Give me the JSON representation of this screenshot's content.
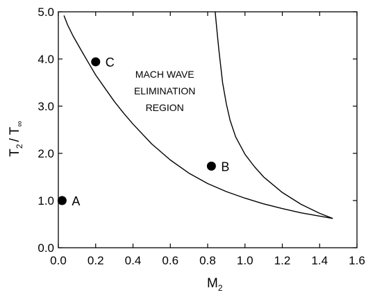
{
  "chart_data": {
    "type": "scatter",
    "title": "",
    "xlabel": {
      "main": "M",
      "sub": "2"
    },
    "ylabel": {
      "main": "T",
      "sub": "2",
      "rest": "/ T",
      "sub2": "∞"
    },
    "xlim": [
      0.0,
      1.6
    ],
    "ylim": [
      0.0,
      5.0
    ],
    "x_ticks": [
      0.0,
      0.2,
      0.4,
      0.6,
      0.8,
      1.0,
      1.2,
      1.4,
      1.6
    ],
    "x_tick_labels": [
      "0.0",
      "0.2",
      "0.4",
      "0.6",
      "0.8",
      "1.0",
      "1.2",
      "1.4",
      "1.6"
    ],
    "y_ticks": [
      0.0,
      1.0,
      2.0,
      3.0,
      4.0,
      5.0
    ],
    "y_tick_labels": [
      "0.0",
      "1.0",
      "2.0",
      "3.0",
      "4.0",
      "5.0"
    ],
    "grid": false,
    "curves": [
      {
        "name": "lower-boundary",
        "x": [
          0.03,
          0.05,
          0.08,
          0.12,
          0.16,
          0.2,
          0.25,
          0.3,
          0.35,
          0.4,
          0.5,
          0.6,
          0.7,
          0.8,
          0.9,
          1.0,
          1.1,
          1.2,
          1.3,
          1.4,
          1.47
        ],
        "y": [
          4.92,
          4.72,
          4.48,
          4.2,
          3.93,
          3.66,
          3.38,
          3.1,
          2.85,
          2.62,
          2.2,
          1.86,
          1.58,
          1.36,
          1.19,
          1.05,
          0.93,
          0.83,
          0.74,
          0.67,
          0.62
        ]
      },
      {
        "name": "upper-boundary",
        "x": [
          0.84,
          0.85,
          0.86,
          0.87,
          0.88,
          0.9,
          0.92,
          0.95,
          1.0,
          1.05,
          1.1,
          1.2,
          1.3,
          1.4,
          1.47
        ],
        "y": [
          5.0,
          4.6,
          4.2,
          3.85,
          3.5,
          3.05,
          2.7,
          2.35,
          1.98,
          1.72,
          1.5,
          1.17,
          0.92,
          0.73,
          0.62
        ]
      }
    ],
    "points": [
      {
        "label": "A",
        "x": 0.02,
        "y": 1.0
      },
      {
        "label": "B",
        "x": 0.82,
        "y": 1.73
      },
      {
        "label": "C",
        "x": 0.2,
        "y": 3.94
      }
    ],
    "annotation": {
      "lines": [
        "MACH WAVE",
        "ELIMINATION",
        "REGION"
      ],
      "x": 0.57,
      "y": [
        3.6,
        3.25,
        2.9
      ]
    }
  }
}
